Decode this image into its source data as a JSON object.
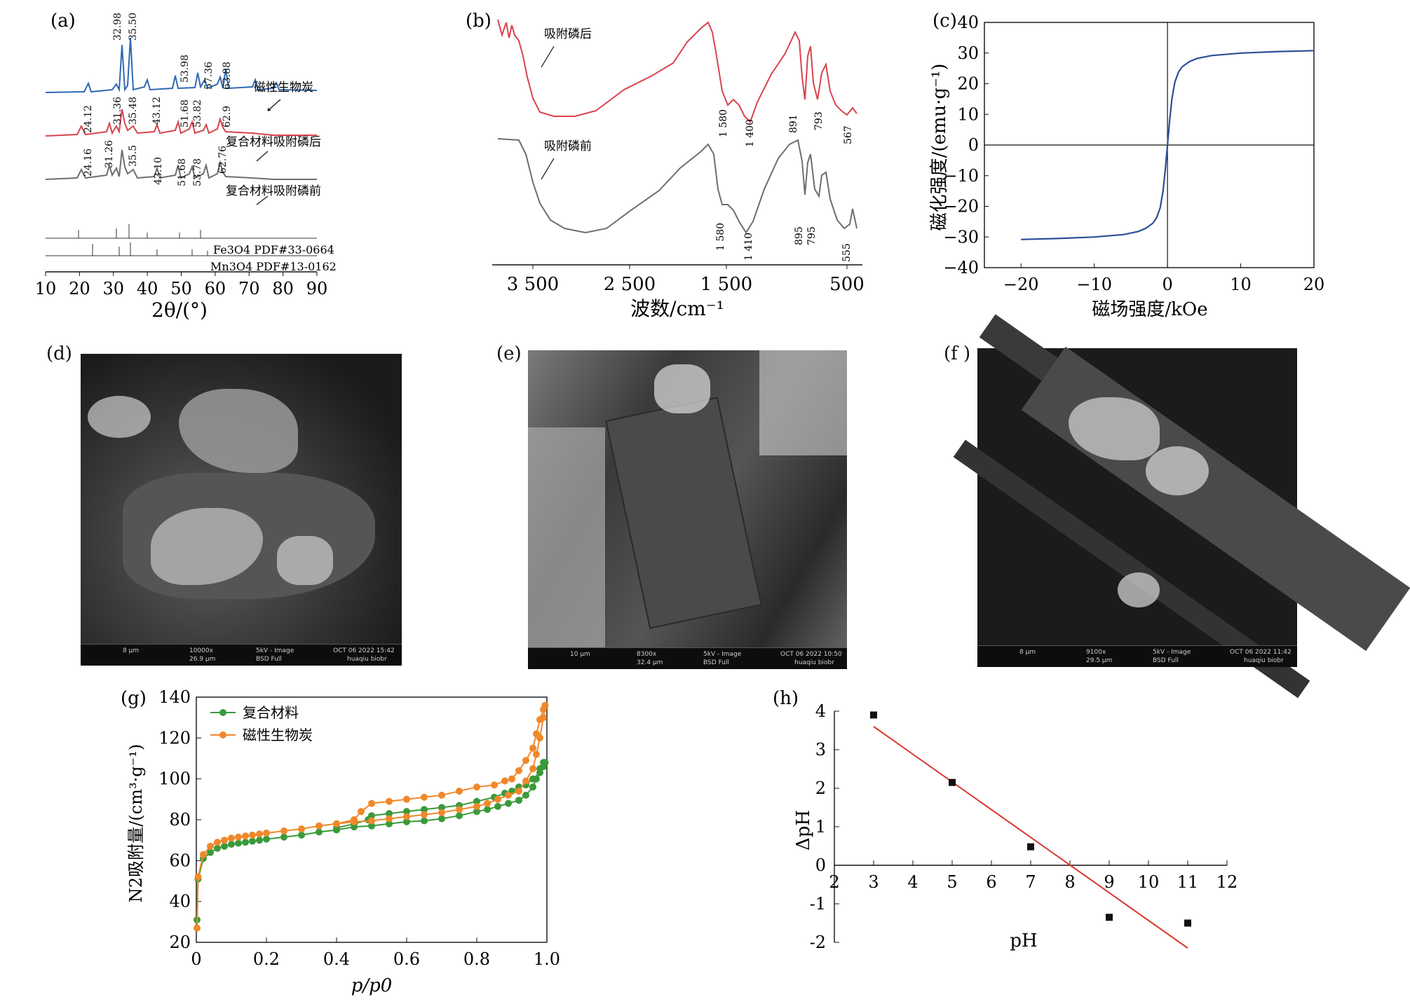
{
  "panels": {
    "a": {
      "label": "(a)",
      "xlabel": "2θ/(°)",
      "ticks": [
        "10",
        "20",
        "30",
        "40",
        "50",
        "60",
        "70",
        "80",
        "90"
      ],
      "series": [
        {
          "name": "磁性生物炭",
          "peaks": [
            "32.98",
            "35.50",
            "53.98",
            "57.36",
            "63.88"
          ]
        },
        {
          "name": "复合材料吸附磷后",
          "peaks": [
            "24.12",
            "31.36",
            "35.48",
            "43.12",
            "51.68",
            "53.82",
            "62.9"
          ]
        },
        {
          "name": "复合材料吸附磷前",
          "peaks": [
            "24.16",
            "31.26",
            "35.5",
            "43.10",
            "51.68",
            "53.78",
            "62.76"
          ]
        }
      ],
      "references": [
        "Fe3O4 PDF#33-0664",
        "Mn3O4 PDF#13-0162"
      ]
    },
    "b": {
      "label": "(b)",
      "xlabel": "波数/cm⁻¹",
      "ticks": [
        "3 500",
        "2 500",
        "1 500",
        "500"
      ],
      "series": [
        {
          "name": "吸附磷后",
          "peaks": [
            "1 580",
            "1 400",
            "891",
            "793",
            "567"
          ]
        },
        {
          "name": "吸附磷前",
          "peaks": [
            "1 580",
            "1 410",
            "895",
            "795",
            "555"
          ]
        }
      ]
    },
    "c": {
      "label": "(c)",
      "xlabel": "磁场强度/kOe",
      "ylabel": "磁化强度/(emu·g⁻¹)",
      "xticks": [
        "−20",
        "−10",
        "0",
        "10",
        "20"
      ],
      "yticks": [
        "40",
        "30",
        "20",
        "10",
        "0",
        "−10",
        "−20",
        "−30",
        "−40"
      ]
    },
    "d": {
      "label": "(d)",
      "info": [
        "10000x",
        "26.9 μm",
        "5kV - Image",
        "BSD Full",
        "OCT 06 2022 15:42",
        "huaqiu biobr",
        "8 μm"
      ]
    },
    "e": {
      "label": "(e)",
      "info": [
        "8300x",
        "32.4 μm",
        "5kV - Image",
        "BSD Full",
        "OCT 06 2022 10:50",
        "huaqiu biobr",
        "10 μm"
      ]
    },
    "f": {
      "label": "(f )",
      "info": [
        "9100x",
        "29.5 μm",
        "5kV - Image",
        "BSD Full",
        "OCT 06 2022 11:42",
        "huaqiu biobr",
        "8 μm"
      ]
    },
    "g": {
      "label": "(g)",
      "xlabel": "p/p0",
      "ylabel": "N2吸附量/(cm³·g⁻¹)",
      "xticks": [
        "0",
        "0.2",
        "0.4",
        "0.6",
        "0.8",
        "1.0"
      ],
      "yticks": [
        "20",
        "40",
        "60",
        "80",
        "100",
        "120",
        "140"
      ]
    },
    "h": {
      "label": "(h)",
      "xlabel": "pH",
      "ylabel": "ΔpH",
      "xticks": [
        "2",
        "3",
        "4",
        "5",
        "6",
        "7",
        "8",
        "9",
        "10",
        "11",
        "12"
      ],
      "yticks": [
        "4",
        "3",
        "2",
        "1",
        "0",
        "-1",
        "-2"
      ]
    }
  },
  "chart_data": [
    {
      "type": "line",
      "panel": "c",
      "x": [
        -20,
        -15,
        -10,
        -6,
        -4,
        -3,
        -2,
        -1.5,
        -1,
        -0.6,
        -0.3,
        0,
        0.3,
        0.6,
        1,
        1.5,
        2,
        3,
        4,
        6,
        10,
        15,
        20
      ],
      "series": [
        {
          "name": "",
          "values": [
            -30.8,
            -30.5,
            -30,
            -29.2,
            -28.2,
            -27.2,
            -25.5,
            -23.8,
            -20.5,
            -15,
            -8,
            0,
            8,
            15,
            20.5,
            23.8,
            25.5,
            27.2,
            28.2,
            29.2,
            30,
            30.5,
            30.8
          ]
        }
      ],
      "xlim": [
        -25,
        20
      ],
      "ylim": [
        -40,
        40
      ],
      "color": "#2a4f99"
    },
    {
      "type": "line",
      "panel": "g",
      "series": [
        {
          "name": "复合材料",
          "color": "#3a9a3a",
          "x": [
            0.002,
            0.005,
            0.02,
            0.04,
            0.06,
            0.08,
            0.1,
            0.12,
            0.14,
            0.16,
            0.18,
            0.2,
            0.25,
            0.3,
            0.35,
            0.4,
            0.45,
            0.5,
            0.55,
            0.6,
            0.65,
            0.7,
            0.75,
            0.8,
            0.83,
            0.86,
            0.89,
            0.92,
            0.94,
            0.96,
            0.97,
            0.98,
            0.99,
            0.995,
            0.99,
            0.98,
            0.96,
            0.94,
            0.92,
            0.9,
            0.88,
            0.85,
            0.8,
            0.75,
            0.7,
            0.65,
            0.6,
            0.55,
            0.5,
            0.49,
            0.45,
            0.4
          ],
          "values": [
            31,
            51,
            61,
            64,
            66,
            67,
            68,
            68.5,
            69,
            69.5,
            70,
            70.5,
            71.5,
            72.5,
            74,
            75,
            76.5,
            77,
            78,
            79,
            79.5,
            80.5,
            82,
            84,
            85,
            86.5,
            88,
            89.5,
            92,
            96,
            100,
            105,
            108,
            108,
            106,
            103,
            100,
            97,
            96,
            94,
            93,
            91,
            89,
            87,
            86,
            85,
            84,
            83,
            82,
            80,
            78,
            76
          ]
        },
        {
          "name": "磁性生物炭",
          "color": "#f0882a",
          "x": [
            0.002,
            0.005,
            0.02,
            0.04,
            0.06,
            0.08,
            0.1,
            0.12,
            0.14,
            0.16,
            0.18,
            0.2,
            0.25,
            0.3,
            0.35,
            0.4,
            0.45,
            0.5,
            0.55,
            0.6,
            0.65,
            0.7,
            0.75,
            0.8,
            0.83,
            0.86,
            0.89,
            0.92,
            0.94,
            0.96,
            0.97,
            0.98,
            0.99,
            0.995,
            0.99,
            0.98,
            0.97,
            0.96,
            0.94,
            0.92,
            0.9,
            0.88,
            0.85,
            0.8,
            0.75,
            0.7,
            0.65,
            0.6,
            0.55,
            0.5,
            0.47,
            0.45,
            0.4
          ],
          "values": [
            27,
            52,
            63,
            67,
            69,
            70,
            71,
            71.5,
            72,
            72.5,
            73,
            73.5,
            74.5,
            75.5,
            77,
            78,
            79,
            79.5,
            80.5,
            81.5,
            82.5,
            83.5,
            85,
            86.5,
            88,
            90,
            92,
            94,
            99,
            105,
            112,
            120,
            130,
            136,
            134,
            129,
            122,
            115,
            109,
            104,
            100,
            99,
            97,
            96,
            94,
            92,
            91,
            90,
            89,
            88,
            84,
            80,
            78
          ]
        }
      ],
      "xlim": [
        0,
        1.0
      ],
      "ylim": [
        20,
        140
      ],
      "legend": "top-left"
    },
    {
      "type": "scatter",
      "panel": "h",
      "x": [
        3,
        5,
        7,
        9,
        11
      ],
      "y": [
        3.9,
        2.15,
        0.48,
        -1.35,
        -1.5
      ],
      "fit_line": {
        "x": [
          3,
          11
        ],
        "y": [
          3.6,
          -2.15
        ]
      },
      "xlim": [
        2,
        12
      ],
      "ylim": [
        -2,
        4
      ]
    }
  ]
}
